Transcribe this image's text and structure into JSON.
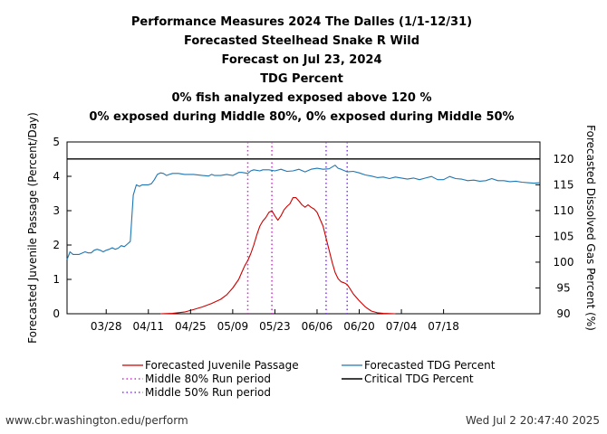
{
  "page": {
    "footer_left": "www.cbr.washington.edu/perform",
    "footer_right": "Wed Jul  2 20:47:40 2025"
  },
  "chart_data": {
    "type": "line",
    "title_lines": [
      "Performance Measures 2024 The Dalles (1/1-12/31)",
      "Forecasted Steelhead Snake R Wild",
      "Forecast on Jul 23, 2024",
      "TDG Percent",
      "0% fish analyzed exposed above 120 %",
      "0% exposed during Middle 80%, 0% exposed during Middle 50%"
    ],
    "ylabel_left": "Forecasted Juvenile Passage (Percent/Day)",
    "ylabel_right": "Forecasted Dissolved Gas Percent (%)",
    "x_range_days": [
      -17,
      140
    ],
    "x_unit": "days after Apr 1, 2024",
    "x_ticks": [
      {
        "label": "03/28",
        "day": -4
      },
      {
        "label": "04/11",
        "day": 10
      },
      {
        "label": "04/25",
        "day": 24
      },
      {
        "label": "05/09",
        "day": 38
      },
      {
        "label": "05/23",
        "day": 52
      },
      {
        "label": "06/06",
        "day": 66
      },
      {
        "label": "06/20",
        "day": 80
      },
      {
        "label": "07/04",
        "day": 94
      },
      {
        "label": "07/18",
        "day": 108
      }
    ],
    "ylim_left": [
      0,
      5
    ],
    "yticks_left": [
      "0",
      "1",
      "2",
      "3",
      "4",
      "5"
    ],
    "ylim_right": [
      90,
      123.3
    ],
    "yticks_right": [
      "90",
      "95",
      "100",
      "105",
      "110",
      "115",
      "120"
    ],
    "critical_tdg": 120,
    "middle80_days": [
      43,
      51
    ],
    "middle50_days": [
      69,
      76
    ],
    "legend": [
      {
        "label": "Forecasted Juvenile Passage",
        "color": "#cc0000",
        "style": "solid"
      },
      {
        "label": "Forecasted TDG Percent",
        "color": "#1f77b4",
        "style": "solid"
      },
      {
        "label": "Middle 80% Run period",
        "color": "#cc33cc",
        "style": "dotted"
      },
      {
        "label": "Critical TDG Percent",
        "color": "#000000",
        "style": "solid"
      },
      {
        "label": "Middle 50% Run period",
        "color": "#8833ff",
        "style": "dotted"
      }
    ],
    "series": [
      {
        "name": "Forecasted Juvenile Passage",
        "axis": "left",
        "color": "#cc0000",
        "points": [
          [
            14,
            0
          ],
          [
            18,
            0.01
          ],
          [
            22,
            0.05
          ],
          [
            25,
            0.12
          ],
          [
            28,
            0.2
          ],
          [
            31,
            0.3
          ],
          [
            34,
            0.42
          ],
          [
            36,
            0.55
          ],
          [
            38,
            0.75
          ],
          [
            40,
            1.0
          ],
          [
            41,
            1.2
          ],
          [
            42,
            1.4
          ],
          [
            43,
            1.55
          ],
          [
            44,
            1.75
          ],
          [
            45,
            2.0
          ],
          [
            46,
            2.3
          ],
          [
            47,
            2.55
          ],
          [
            48,
            2.7
          ],
          [
            49,
            2.8
          ],
          [
            50,
            2.95
          ],
          [
            51,
            3.0
          ],
          [
            52,
            2.85
          ],
          [
            53,
            2.72
          ],
          [
            54,
            2.85
          ],
          [
            55,
            3.02
          ],
          [
            56,
            3.12
          ],
          [
            57,
            3.2
          ],
          [
            58,
            3.38
          ],
          [
            59,
            3.38
          ],
          [
            60,
            3.28
          ],
          [
            61,
            3.17
          ],
          [
            62,
            3.1
          ],
          [
            63,
            3.17
          ],
          [
            64,
            3.1
          ],
          [
            65,
            3.05
          ],
          [
            66,
            2.95
          ],
          [
            67,
            2.75
          ],
          [
            68,
            2.55
          ],
          [
            69,
            2.2
          ],
          [
            70,
            1.85
          ],
          [
            71,
            1.5
          ],
          [
            72,
            1.2
          ],
          [
            73,
            1.02
          ],
          [
            74,
            0.93
          ],
          [
            75,
            0.9
          ],
          [
            76,
            0.85
          ],
          [
            77,
            0.72
          ],
          [
            78,
            0.58
          ],
          [
            80,
            0.38
          ],
          [
            82,
            0.2
          ],
          [
            84,
            0.08
          ],
          [
            86,
            0.03
          ],
          [
            88,
            0.01
          ],
          [
            92,
            0
          ]
        ]
      },
      {
        "name": "Forecasted TDG Percent",
        "axis": "right",
        "color": "#1f77b4",
        "points": [
          [
            -17,
            100.5
          ],
          [
            -16,
            102
          ],
          [
            -15,
            101.5
          ],
          [
            -13,
            101.5
          ],
          [
            -11,
            102
          ],
          [
            -10,
            101.8
          ],
          [
            -9,
            101.8
          ],
          [
            -8,
            102.3
          ],
          [
            -7,
            102.5
          ],
          [
            -6,
            102.3
          ],
          [
            -5,
            102.0
          ],
          [
            -4,
            102.3
          ],
          [
            -3,
            102.5
          ],
          [
            -2,
            102.8
          ],
          [
            -1,
            102.5
          ],
          [
            0,
            102.7
          ],
          [
            1,
            103.2
          ],
          [
            2,
            103
          ],
          [
            3,
            103.5
          ],
          [
            4,
            104
          ],
          [
            5,
            113
          ],
          [
            6,
            115
          ],
          [
            7,
            114.7
          ],
          [
            8,
            115
          ],
          [
            9,
            115
          ],
          [
            10,
            115
          ],
          [
            11,
            115.2
          ],
          [
            12,
            116
          ],
          [
            13,
            117
          ],
          [
            14,
            117.3
          ],
          [
            15,
            117.2
          ],
          [
            16,
            116.8
          ],
          [
            17,
            117
          ],
          [
            18,
            117.2
          ],
          [
            20,
            117.2
          ],
          [
            22,
            117
          ],
          [
            25,
            117
          ],
          [
            28,
            116.8
          ],
          [
            30,
            116.7
          ],
          [
            31,
            117
          ],
          [
            32,
            116.8
          ],
          [
            34,
            116.8
          ],
          [
            36,
            117
          ],
          [
            38,
            116.8
          ],
          [
            40,
            117.4
          ],
          [
            41,
            117.4
          ],
          [
            42,
            117.3
          ],
          [
            43,
            117.2
          ],
          [
            44,
            117.7
          ],
          [
            45,
            117.9
          ],
          [
            47,
            117.7
          ],
          [
            48,
            117.9
          ],
          [
            50,
            117.9
          ],
          [
            52,
            117.7
          ],
          [
            54,
            118
          ],
          [
            56,
            117.6
          ],
          [
            58,
            117.7
          ],
          [
            60,
            118
          ],
          [
            62,
            117.5
          ],
          [
            64,
            118
          ],
          [
            66,
            118.2
          ],
          [
            68,
            118
          ],
          [
            70,
            118.1
          ],
          [
            72,
            118.8
          ],
          [
            73,
            118.2
          ],
          [
            74,
            118
          ],
          [
            76,
            117.5
          ],
          [
            78,
            117.6
          ],
          [
            80,
            117.3
          ],
          [
            82,
            116.9
          ],
          [
            84,
            116.7
          ],
          [
            86,
            116.4
          ],
          [
            88,
            116.5
          ],
          [
            90,
            116.2
          ],
          [
            92,
            116.5
          ],
          [
            94,
            116.3
          ],
          [
            96,
            116.1
          ],
          [
            98,
            116.3
          ],
          [
            100,
            116
          ],
          [
            102,
            116.3
          ],
          [
            104,
            116.6
          ],
          [
            106,
            116
          ],
          [
            108,
            116
          ],
          [
            110,
            116.6
          ],
          [
            112,
            116.2
          ],
          [
            114,
            116.1
          ],
          [
            116,
            115.8
          ],
          [
            118,
            115.9
          ],
          [
            120,
            115.7
          ],
          [
            122,
            115.8
          ],
          [
            124,
            116.2
          ],
          [
            126,
            115.8
          ],
          [
            128,
            115.8
          ],
          [
            130,
            115.6
          ],
          [
            132,
            115.7
          ],
          [
            134,
            115.5
          ],
          [
            136,
            115.4
          ],
          [
            138,
            115.3
          ],
          [
            140,
            115.4
          ]
        ]
      }
    ]
  }
}
